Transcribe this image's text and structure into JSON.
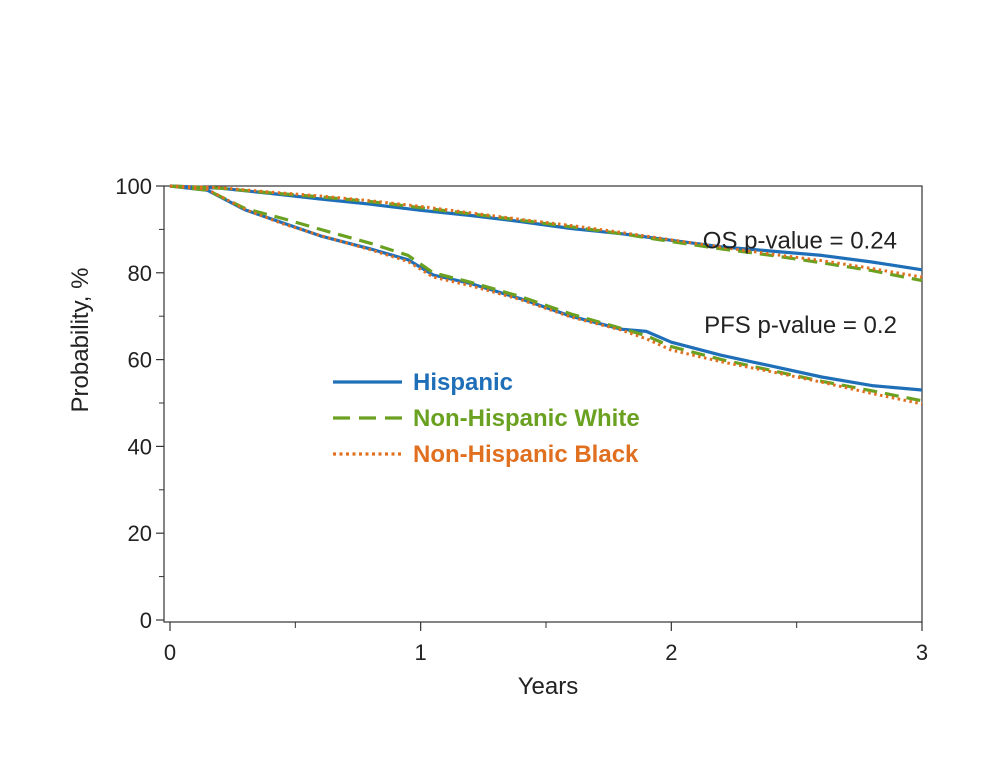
{
  "chart_data": {
    "type": "line",
    "xlabel": "Years",
    "ylabel": "Probability, %",
    "xlim": [
      0,
      3
    ],
    "ylim": [
      0,
      100
    ],
    "x_ticks": [
      0,
      1,
      2,
      3
    ],
    "x_minor_ticks": [
      0.5,
      1.5,
      2.5
    ],
    "y_ticks": [
      0,
      20,
      40,
      60,
      80,
      100
    ],
    "y_minor_ticks": [
      10,
      30,
      50,
      70,
      90
    ],
    "grid": false,
    "legend_position": "center-left",
    "annotations": [
      {
        "text": "OS p-value = 0.24",
        "x": 2.9,
        "y": 87.5
      },
      {
        "text": "PFS p-value = 0.2",
        "x": 2.9,
        "y": 68
      }
    ],
    "series": [
      {
        "name": "Hispanic",
        "group": "OS",
        "color": "#1f6fb8",
        "dash": "solid",
        "in_legend": true,
        "x": [
          0,
          0.2,
          0.4,
          0.6,
          0.8,
          1.0,
          1.2,
          1.4,
          1.6,
          1.8,
          2.0,
          2.2,
          2.4,
          2.6,
          2.8,
          3.0
        ],
        "y": [
          100,
          99.5,
          98.3,
          97,
          95.8,
          94.4,
          93.2,
          91.8,
          90.2,
          89,
          87.5,
          86,
          85,
          84,
          82.5,
          80.7
        ]
      },
      {
        "name": "Non-Hispanic White",
        "group": "OS",
        "color": "#6aa121",
        "dash": "dashed",
        "in_legend": true,
        "x": [
          0,
          0.2,
          0.4,
          0.6,
          0.8,
          1.0,
          1.2,
          1.4,
          1.6,
          1.8,
          2.0,
          2.2,
          2.4,
          2.6,
          2.8,
          3.0
        ],
        "y": [
          100,
          99.5,
          98.4,
          97.5,
          96.4,
          95,
          93.6,
          92.1,
          90.6,
          89,
          87.2,
          85.5,
          84,
          82.3,
          80.5,
          78.2
        ]
      },
      {
        "name": "Non-Hispanic Black",
        "group": "OS",
        "color": "#e07020",
        "dash": "dotted",
        "in_legend": true,
        "x": [
          0,
          0.2,
          0.4,
          0.6,
          0.8,
          1.0,
          1.2,
          1.4,
          1.6,
          1.8,
          2.0,
          2.2,
          2.4,
          2.6,
          2.8,
          3.0
        ],
        "y": [
          100,
          99.6,
          98.6,
          97.7,
          96.6,
          95.3,
          93.8,
          92.3,
          90.9,
          89.3,
          87.6,
          85.9,
          84.3,
          82.8,
          81,
          79
        ]
      },
      {
        "name": "Hispanic",
        "group": "PFS",
        "color": "#1f6fb8",
        "dash": "solid",
        "in_legend": false,
        "x": [
          0,
          0.15,
          0.3,
          0.45,
          0.6,
          0.8,
          0.95,
          1.05,
          1.2,
          1.4,
          1.6,
          1.8,
          1.9,
          2.0,
          2.2,
          2.4,
          2.6,
          2.8,
          3.0
        ],
        "y": [
          100,
          99,
          94.5,
          91.5,
          88.5,
          85.5,
          83,
          79.5,
          77.5,
          74,
          70,
          67,
          66.5,
          64,
          61,
          58.5,
          56,
          54,
          53
        ]
      },
      {
        "name": "Non-Hispanic White",
        "group": "PFS",
        "color": "#6aa121",
        "dash": "dashed",
        "in_legend": false,
        "x": [
          0,
          0.15,
          0.3,
          0.45,
          0.6,
          0.8,
          0.95,
          1.05,
          1.2,
          1.4,
          1.6,
          1.8,
          1.9,
          2.0,
          2.2,
          2.4,
          2.6,
          2.8,
          3.0
        ],
        "y": [
          100,
          99,
          94.8,
          92.5,
          90,
          86.8,
          84,
          80,
          77.8,
          74.5,
          70.5,
          67.2,
          65.5,
          63,
          60,
          57.5,
          55,
          52.8,
          50.5
        ]
      },
      {
        "name": "Non-Hispanic Black",
        "group": "PFS",
        "color": "#e07020",
        "dash": "dotted",
        "in_legend": false,
        "x": [
          0,
          0.15,
          0.3,
          0.45,
          0.6,
          0.8,
          0.95,
          1.05,
          1.2,
          1.4,
          1.6,
          1.8,
          1.9,
          2.0,
          2.2,
          2.4,
          2.6,
          2.8,
          3.0
        ],
        "y": [
          100,
          99.2,
          94.6,
          91.3,
          88.6,
          85.3,
          82.6,
          79,
          77,
          73.8,
          69.8,
          66.8,
          64.8,
          62.2,
          59.5,
          57.2,
          54.8,
          52.2,
          49.8
        ]
      }
    ]
  }
}
